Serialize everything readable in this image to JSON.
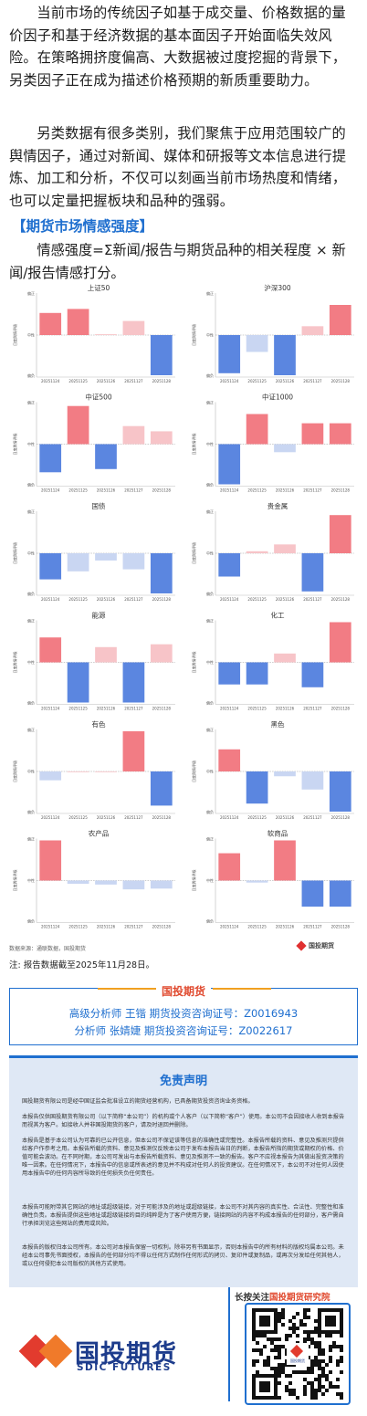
{
  "intro": {
    "p1": "当前市场的传统因子如基于成交量、价格数据的量价因子和基于经济数据的基本面因子开始面临失效风险。在策略拥挤度偏高、大数据被过度挖掘的背景下，另类因子正在成为描述价格预期的新质重要助力。",
    "p2": "另类数据有很多类别，我们聚焦于应用范围较广的舆情因子，通过对新闻、媒体和研报等文本信息进行提炼、加工和分析，不仅可以刻画当前市场热度和情绪，也可以定量把握板块和品种的强弱。"
  },
  "section": {
    "title": "【期货市场情感强度】",
    "formula": "情感强度=Σ新闻/报告与期货品种的相关程度 × 新闻/报告情感打分。"
  },
  "chart_common": {
    "y_ticks": [
      "偏正",
      "中性",
      "偏负"
    ],
    "y_label": "日度舆情评级",
    "dates": [
      "20251124",
      "20251125",
      "20251126",
      "20251127",
      "20251128"
    ],
    "colors": {
      "strong_pos": "#f27c84",
      "weak_pos": "#f7c4c8",
      "strong_neg": "#5b86e0",
      "weak_neg": "#c9d6f2"
    }
  },
  "chart_data": [
    {
      "type": "bar",
      "title": "上证50",
      "categories": [
        "20251124",
        "20251125",
        "20251126",
        "20251127",
        "20251128"
      ],
      "values": [
        0.55,
        0.65,
        0.02,
        0.35,
        -1.0
      ],
      "ylim": [
        -1,
        1
      ]
    },
    {
      "type": "bar",
      "title": "沪深300",
      "categories": [
        "20251124",
        "20251125",
        "20251126",
        "20251127",
        "20251128"
      ],
      "values": [
        -0.95,
        -0.42,
        -1.0,
        0.22,
        0.75
      ],
      "ylim": [
        -1,
        1
      ]
    },
    {
      "type": "bar",
      "title": "中证500",
      "categories": [
        "20251124",
        "20251125",
        "20251126",
        "20251127",
        "20251128"
      ],
      "values": [
        -0.7,
        0.95,
        -0.62,
        0.45,
        0.32
      ],
      "ylim": [
        -1,
        1
      ]
    },
    {
      "type": "bar",
      "title": "中证1000",
      "categories": [
        "20251124",
        "20251125",
        "20251126",
        "20251127",
        "20251128"
      ],
      "values": [
        -1.0,
        0.75,
        -0.2,
        0.52,
        0.52
      ],
      "ylim": [
        -1,
        1
      ]
    },
    {
      "type": "bar",
      "title": "国债",
      "categories": [
        "20251124",
        "20251125",
        "20251126",
        "20251127",
        "20251128"
      ],
      "values": [
        -0.65,
        -0.45,
        -0.18,
        -0.4,
        -1.0
      ],
      "ylim": [
        -1,
        1
      ]
    },
    {
      "type": "bar",
      "title": "贵金属",
      "categories": [
        "20251124",
        "20251125",
        "20251126",
        "20251127",
        "20251128"
      ],
      "values": [
        -0.58,
        0.05,
        0.22,
        -0.95,
        0.95
      ],
      "ylim": [
        -1,
        1
      ]
    },
    {
      "type": "bar",
      "title": "能源",
      "categories": [
        "20251124",
        "20251125",
        "20251126",
        "20251127",
        "20251128"
      ],
      "values": [
        0.62,
        -1.0,
        0.38,
        -1.0,
        0.45
      ],
      "ylim": [
        -1,
        1
      ]
    },
    {
      "type": "bar",
      "title": "化工",
      "categories": [
        "20251124",
        "20251125",
        "20251126",
        "20251127",
        "20251128"
      ],
      "values": [
        -0.55,
        -0.55,
        0.22,
        -0.62,
        1.0
      ],
      "ylim": [
        -1,
        1
      ]
    },
    {
      "type": "bar",
      "title": "有色",
      "categories": [
        "20251124",
        "20251125",
        "20251126",
        "20251127",
        "20251128"
      ],
      "values": [
        -0.22,
        0.0,
        0.0,
        1.0,
        -0.85
      ],
      "ylim": [
        -1,
        1
      ]
    },
    {
      "type": "bar",
      "title": "黑色",
      "categories": [
        "20251124",
        "20251125",
        "20251126",
        "20251127",
        "20251128"
      ],
      "values": [
        0.55,
        -0.8,
        -0.12,
        -0.45,
        -1.0
      ],
      "ylim": [
        -1,
        1
      ]
    },
    {
      "type": "bar",
      "title": "农产品",
      "categories": [
        "20251124",
        "20251125",
        "20251126",
        "20251127",
        "20251128"
      ],
      "values": [
        1.0,
        -0.08,
        -0.1,
        -0.22,
        -0.2
      ],
      "ylim": [
        -1,
        1
      ]
    },
    {
      "type": "bar",
      "title": "软商品",
      "categories": [
        "20251124",
        "20251125",
        "20251126",
        "20251127",
        "20251128"
      ],
      "values": [
        0.68,
        -0.05,
        1.0,
        -0.65,
        -0.65
      ],
      "ylim": [
        -1,
        1
      ]
    }
  ],
  "chart_footer": {
    "source": "数据来源：通联数据，国投期货",
    "logo_text": "国投期货"
  },
  "note": "注: 报告数据截至2025年11月28日。",
  "analysts": {
    "header": "国投期货",
    "line1": "高级分析师  王锴  期货投资咨询证号：Z0016943",
    "line2": "分析师  张婧婕  期货投资咨询证号：Z0022617"
  },
  "disclaimer": {
    "title": "免责声明",
    "p1": "国投期货有限公司是经中国证监会批准设立的期货经营机构，已具备期货投资咨询业务资格。",
    "p2": "本报告仅供国投期货有限公司（以下简称“本公司”）的机构或个人客户（以下简称“客户”）使用。本公司不会因接收人收到本报告而视其为客户。如接收人并非国投期货的客户，请及时退回并删除。",
    "p3": "本报告是基于本公司认为可靠的已公开信息，但本公司不保证该等信息的准确性或完整性。本报告所载的资料、意见及推测只提供给客户作参考之用。本报告所载的资料、意见及推测仅反映本公司于发布本报告当日的判断，本报告所指的期货或期权的价格、价值可能会波动。在不同时期，本公司可发出与本报告所载资料、意见及推测不一致的报告。客户不应视本报告为其做出投资决策的唯一因素。在任何情况下，本报告中的信息或所表述的意见并不构成对任何人的投资建议。在任何情况下，本公司不对任何人因使用本报告中的任何内容所导致的任何损失负任何责任。",
    "p4": "本报告可能附带其它网站的地址或超级链接，对于可能涉及的地址或超级链接，本公司不对其内容的真实性、合法性、完整性和准确性负责。本报告提供这些地址或超级链接的目的纯粹是为了客户使用方便，链接网站的内容不构成本报告的任何部分，客户需自行承担浏览这些网站的费用或风险。",
    "p5": "本报告的版权归本公司所有。本公司对本报告保留一切权利。除非另有书面显示，否则本报告中的所有材料的版权均属本公司。未经本公司事先书面授权，本报告的任何部分均不得以任何方式制作任何形式的拷贝、复印件或复制品，或再次分发给任何其他人，或以任何侵犯本公司版权的其他方式使用。"
  },
  "footer": {
    "follow_prefix": "长按关注",
    "follow_brand": "国投期货研究院",
    "logo_cn": "国投期货",
    "logo_en": "SDIC FUTURES",
    "qr_caption": "国投期货"
  }
}
